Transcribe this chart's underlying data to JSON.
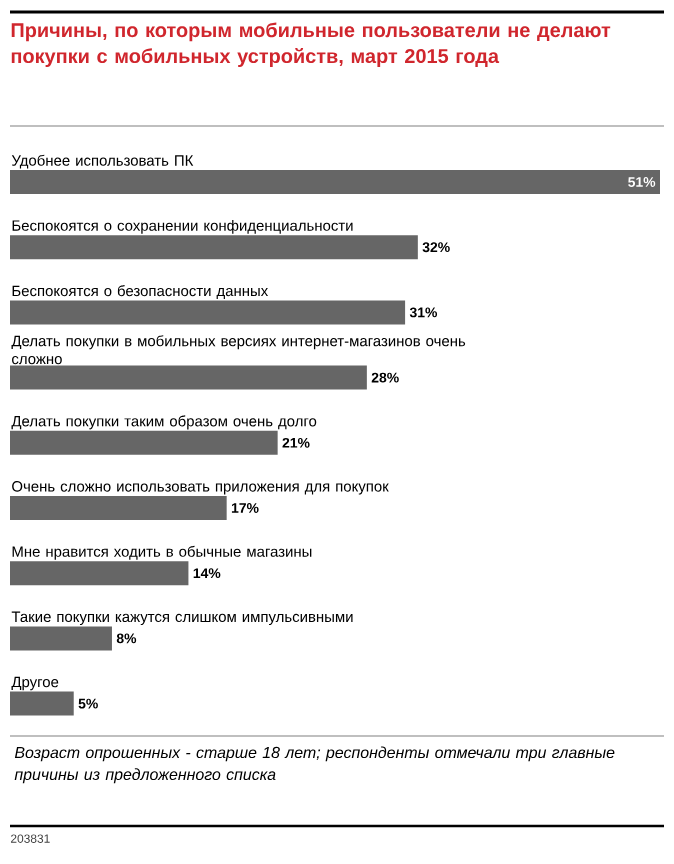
{
  "chart_data": {
    "type": "bar",
    "orientation": "horizontal",
    "title": "Причины, по которым мобильные пользователи не делают покупки с мобильных устройств, март 2015 года",
    "categories": [
      "Удобнее использовать ПК",
      "Беспокоятся о сохранении конфиденциальности",
      "Беспокоятся о безопасности данных",
      "Делать покупки в мобильных версиях интернет-магазинов очень сложно",
      "Делать покупки таким образом очень долго",
      "Очень сложно использовать приложения для покупок",
      "Мне нравится ходить в обычные магазины",
      "Такие покупки кажутся слишком импульсивными",
      "Другое"
    ],
    "values": [
      51,
      32,
      31,
      28,
      21,
      17,
      14,
      8,
      5
    ],
    "value_labels": [
      "51%",
      "32%",
      "31%",
      "28%",
      "21%",
      "17%",
      "14%",
      "8%",
      "5%"
    ],
    "color": "#666666",
    "annotations": [
      "Возраст опрошенных - старше 18 лет; респонденты отмечали три главные причины из предложенного списка",
      "203831"
    ]
  }
}
